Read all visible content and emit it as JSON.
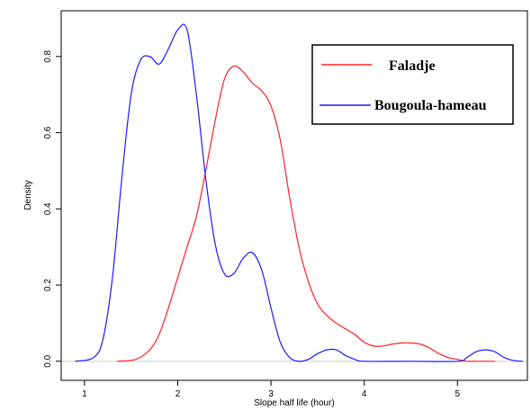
{
  "chart_data": {
    "type": "line",
    "xlabel": "Slope half life (hour)",
    "ylabel": "Density",
    "xlim": [
      0.75,
      5.75
    ],
    "ylim": [
      -0.05,
      0.92
    ],
    "x_ticks": [
      1,
      2,
      3,
      4,
      5
    ],
    "y_ticks": [
      0.0,
      0.2,
      0.4,
      0.6,
      0.8
    ],
    "x_tick_labels": [
      "1",
      "2",
      "3",
      "4",
      "5"
    ],
    "y_tick_labels": [
      "0.0",
      "0.2",
      "0.4",
      "0.6",
      "0.8"
    ],
    "baseline": 0,
    "legend_position": "top-right",
    "series": [
      {
        "name": "Faladje",
        "color": "#ff2020",
        "x": [
          1.35,
          1.55,
          1.7,
          1.8,
          1.9,
          2.0,
          2.1,
          2.2,
          2.3,
          2.4,
          2.5,
          2.6,
          2.7,
          2.8,
          2.9,
          3.0,
          3.1,
          3.2,
          3.3,
          3.4,
          3.5,
          3.6,
          3.7,
          3.8,
          3.9,
          4.0,
          4.1,
          4.2,
          4.3,
          4.4,
          4.5,
          4.6,
          4.7,
          4.8,
          4.9,
          5.0,
          5.1,
          5.2,
          5.3,
          5.4
        ],
        "y": [
          0.0,
          0.005,
          0.03,
          0.07,
          0.14,
          0.22,
          0.3,
          0.38,
          0.5,
          0.63,
          0.74,
          0.775,
          0.76,
          0.73,
          0.71,
          0.67,
          0.58,
          0.43,
          0.3,
          0.21,
          0.15,
          0.12,
          0.1,
          0.085,
          0.07,
          0.05,
          0.04,
          0.04,
          0.045,
          0.048,
          0.048,
          0.045,
          0.035,
          0.02,
          0.01,
          0.005,
          0.0,
          0.0,
          0.0,
          0.0
        ]
      },
      {
        "name": "Bougoula-hameau",
        "color": "#1a1aff",
        "x": [
          0.9,
          1.1,
          1.2,
          1.3,
          1.4,
          1.5,
          1.6,
          1.7,
          1.8,
          1.9,
          2.0,
          2.1,
          2.2,
          2.3,
          2.4,
          2.5,
          2.6,
          2.7,
          2.8,
          2.9,
          3.0,
          3.1,
          3.2,
          3.3,
          3.4,
          3.5,
          3.6,
          3.7,
          3.8,
          3.9,
          4.0,
          4.5,
          5.0,
          5.1,
          5.2,
          5.3,
          5.4,
          5.5,
          5.6,
          5.7
        ],
        "y": [
          0.0,
          0.01,
          0.06,
          0.22,
          0.48,
          0.7,
          0.79,
          0.8,
          0.78,
          0.82,
          0.87,
          0.87,
          0.7,
          0.48,
          0.31,
          0.23,
          0.23,
          0.27,
          0.285,
          0.24,
          0.14,
          0.05,
          0.01,
          0.0,
          0.005,
          0.02,
          0.03,
          0.03,
          0.015,
          0.005,
          0.0,
          0.0,
          0.0,
          0.01,
          0.025,
          0.03,
          0.025,
          0.01,
          0.002,
          0.0
        ]
      }
    ]
  }
}
